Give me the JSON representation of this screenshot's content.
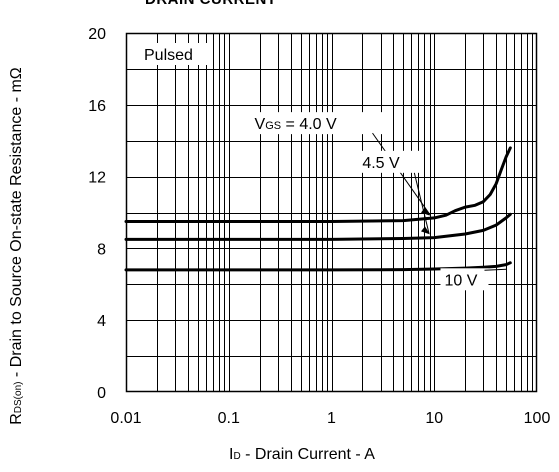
{
  "chart_data": {
    "type": "line",
    "title": "DRAIN CURRENT",
    "xlabel": {
      "prefix": "I",
      "sub": "D",
      "text": " - Drain Current - A"
    },
    "ylabel": {
      "prefix": "R",
      "sub": "DS(on)",
      "text": " - Drain to Source On-state Resistance - mΩ"
    },
    "x_scale": "log",
    "xlim": [
      0.01,
      100
    ],
    "ylim": [
      0,
      20
    ],
    "x_ticks": [
      0.01,
      0.1,
      1,
      10,
      100
    ],
    "x_tick_labels": [
      "0.01",
      "0.1",
      "1",
      "10",
      "100"
    ],
    "y_ticks": [
      0,
      4,
      8,
      12,
      16,
      20
    ],
    "y_tick_labels": [
      "0",
      "4",
      "8",
      "12",
      "16",
      "20"
    ],
    "grid": true,
    "series": [
      {
        "name": "VGS = 4.0 V",
        "x": [
          0.01,
          1,
          5,
          10,
          13,
          16,
          20,
          25,
          30,
          35,
          40,
          45,
          50,
          55
        ],
        "y": [
          9.5,
          9.5,
          9.55,
          9.7,
          9.85,
          10.1,
          10.3,
          10.4,
          10.6,
          11.0,
          11.6,
          12.4,
          13.1,
          13.6
        ]
      },
      {
        "name": "4.5 V",
        "x": [
          0.01,
          1,
          5,
          10,
          20,
          30,
          40,
          50,
          55
        ],
        "y": [
          8.5,
          8.5,
          8.55,
          8.6,
          8.8,
          9.0,
          9.3,
          9.7,
          9.9
        ]
      },
      {
        "name": "10 V",
        "x": [
          0.01,
          1,
          5,
          10,
          20,
          30,
          40,
          50,
          55
        ],
        "y": [
          6.8,
          6.8,
          6.82,
          6.85,
          6.9,
          6.95,
          7.0,
          7.1,
          7.2
        ]
      }
    ],
    "annotations": [
      {
        "text": "Pulsed"
      },
      {
        "text": "VGS = 4.0 V",
        "parts": [
          "V",
          "GS",
          " = 4.0 V"
        ],
        "label_at": [
          3.0,
          14.7
        ],
        "arrow_to": [
          9.5,
          9.6
        ]
      },
      {
        "text": "4.5 V",
        "label_at": [
          7.0,
          12.6
        ],
        "arrow_to": [
          8.5,
          8.5
        ]
      },
      {
        "text": "10 V",
        "label_at": [
          18,
          6.0
        ]
      }
    ]
  }
}
